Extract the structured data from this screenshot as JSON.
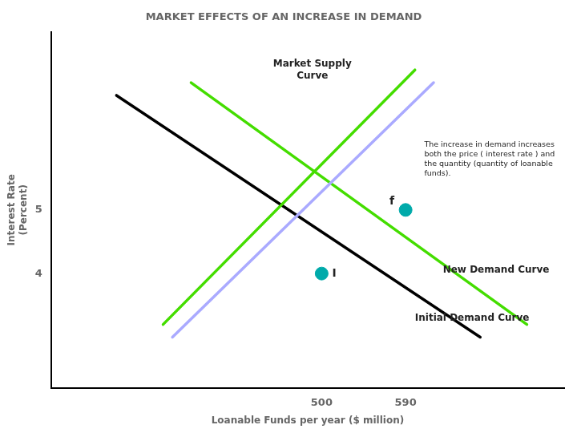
{
  "chart_data": {
    "type": "line",
    "title": "MARKET EFFECTS OF AN INCREASE IN DEMAND",
    "xlabel": "Loanable Funds per year ($ million)",
    "ylabel": "Interest Rate\n(Percent)",
    "xlim": [
      210,
      760
    ],
    "ylim": [
      2.2,
      7.8
    ],
    "xticks": [
      500,
      590
    ],
    "yticks": [
      4,
      5
    ],
    "grid": false,
    "series": [
      {
        "name": "Market Supply\nCurve",
        "color": "#44dd00",
        "x": [
          330,
          600
        ],
        "values": [
          3.2,
          7.2
        ]
      },
      {
        "color": "#aaaaff",
        "x": [
          340,
          620
        ],
        "values": [
          3.0,
          7.0
        ]
      },
      {
        "name": "Initial Demand Curve",
        "color": "#000000",
        "x": [
          280,
          670
        ],
        "values": [
          6.8,
          3.0
        ]
      },
      {
        "name": "New Demand Curve",
        "color": "#44dd00",
        "x": [
          360,
          720
        ],
        "values": [
          7.0,
          3.2
        ]
      },
      {
        "type": "scatter",
        "color": "#00aaaa",
        "x": [
          500,
          590
        ],
        "values": [
          4.0,
          5.0
        ],
        "labels": [
          "I",
          "f"
        ]
      }
    ],
    "annotations": [
      "The increase in demand increases\nboth the price ( interest rate ) and\nthe quantity (quantity of loanable\nfunds)."
    ]
  }
}
